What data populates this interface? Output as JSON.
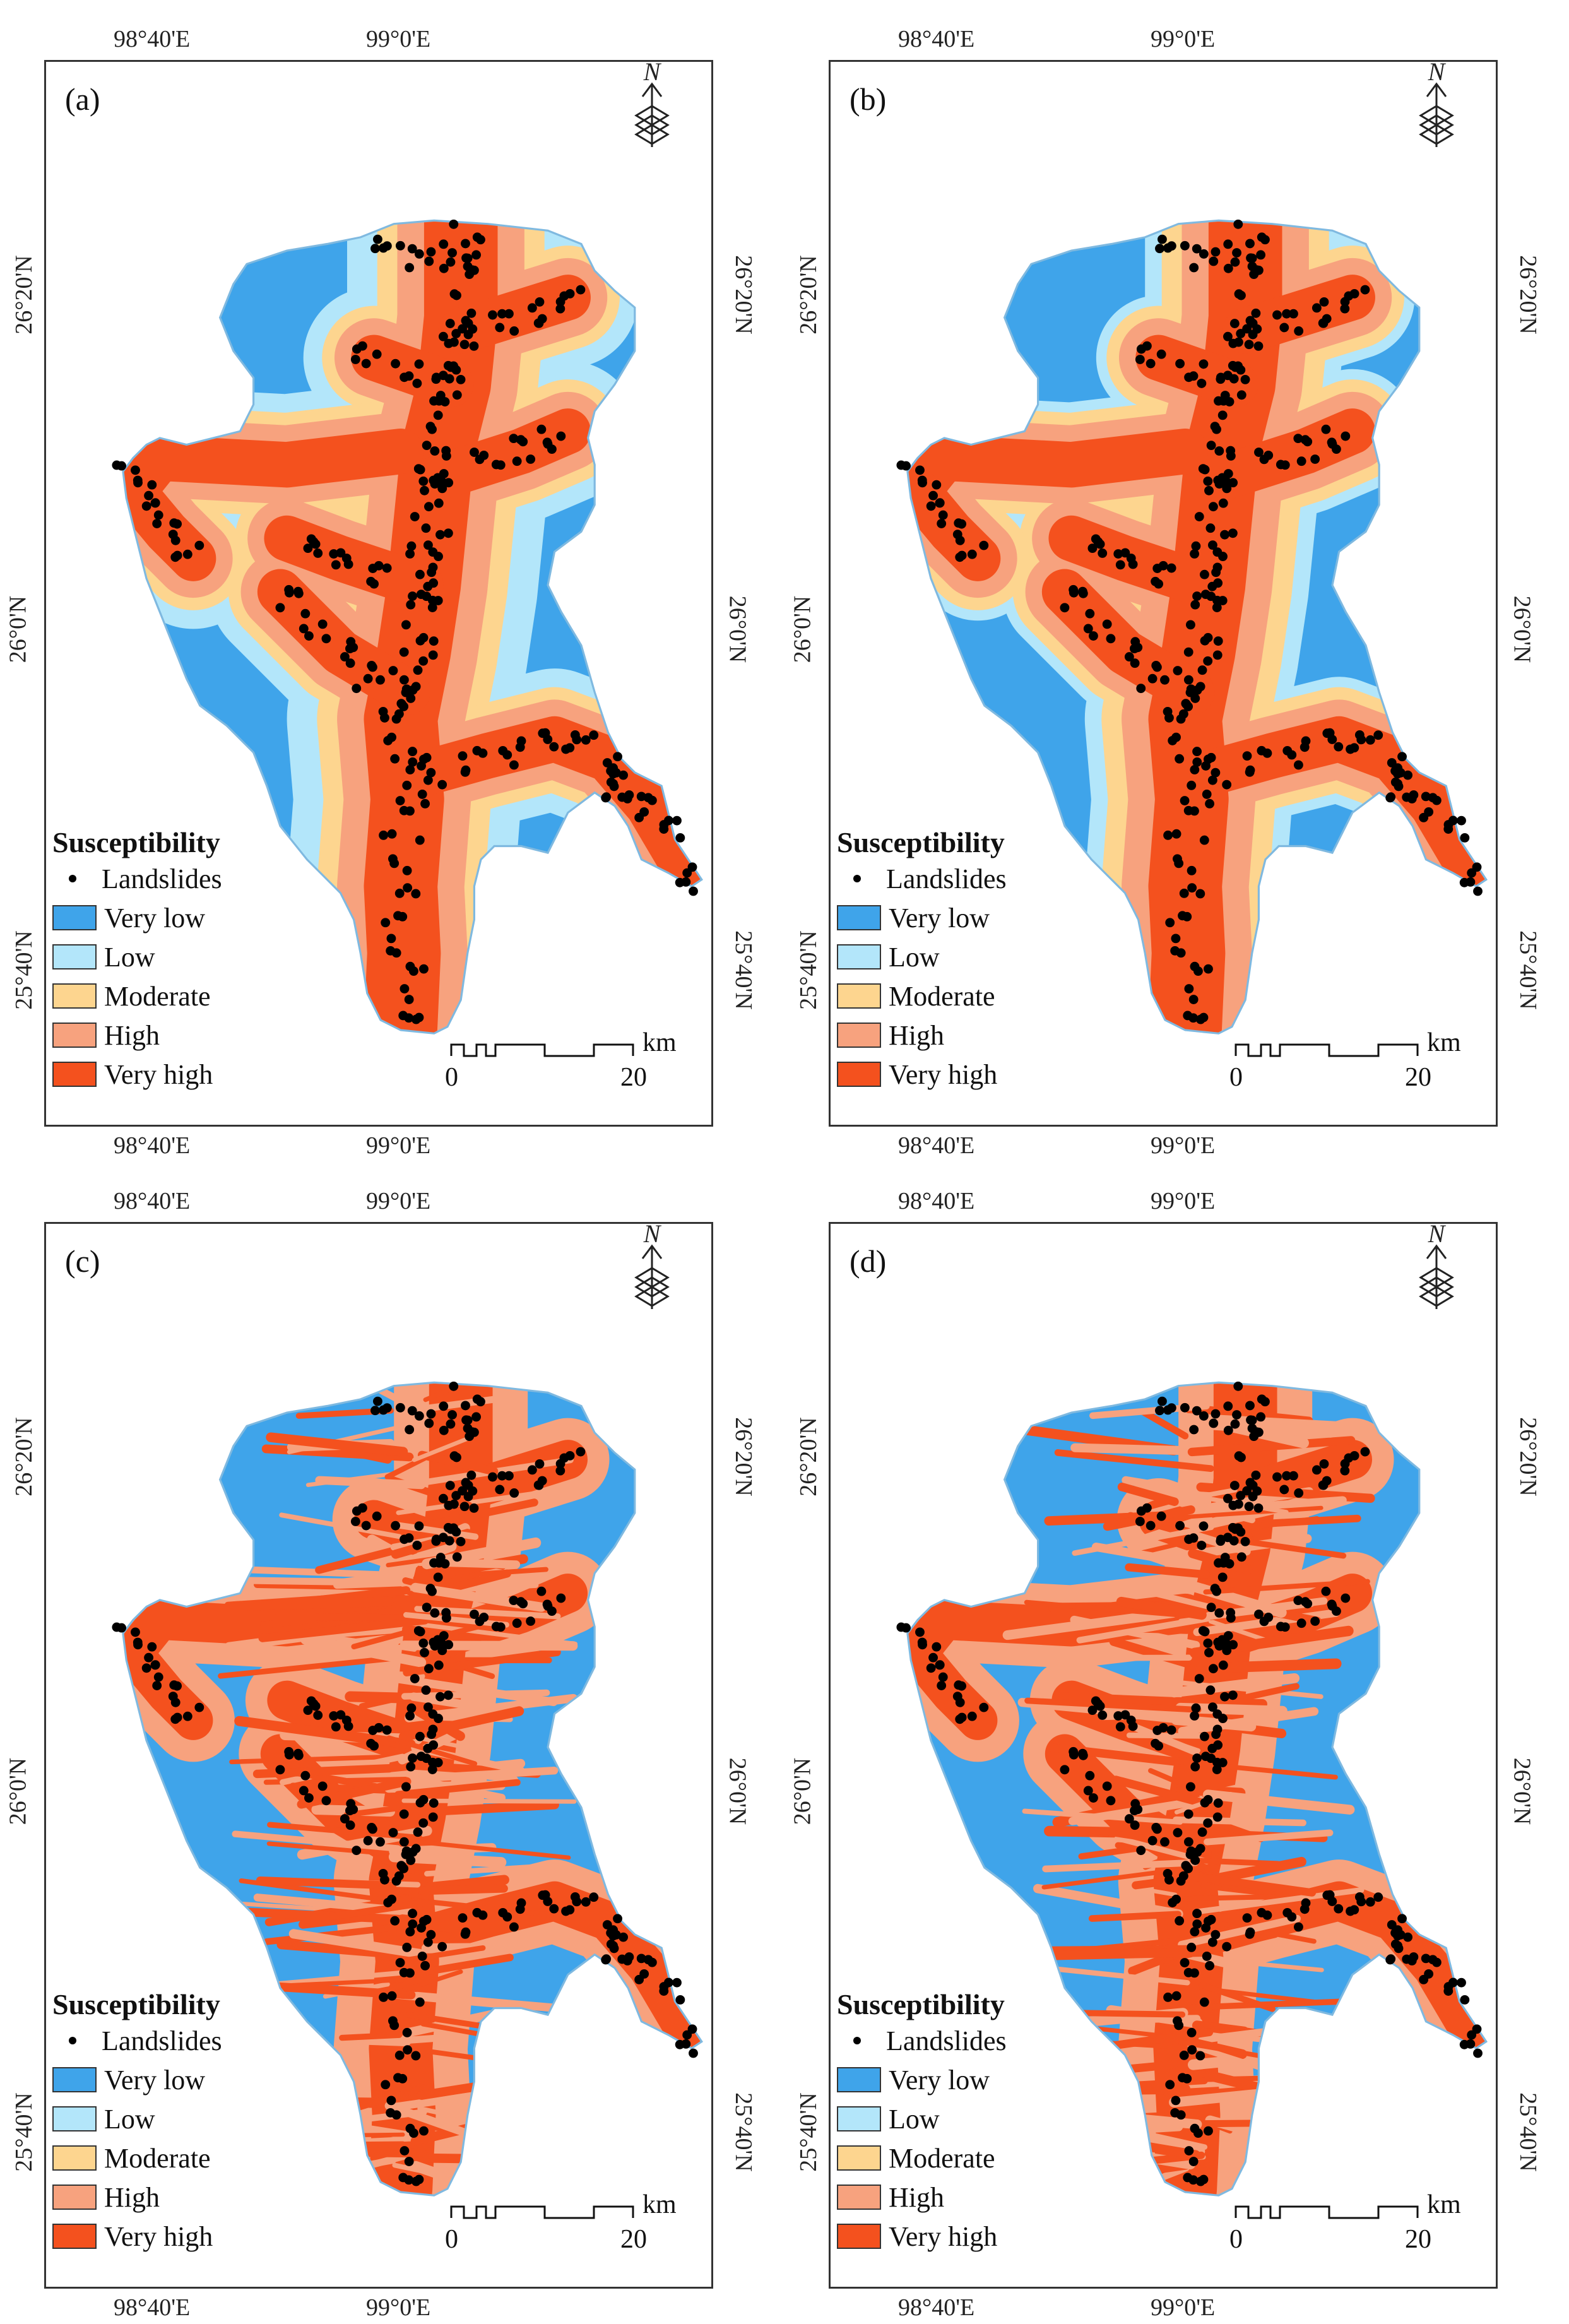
{
  "panels": [
    {
      "letter": "(a)",
      "variant": "a"
    },
    {
      "letter": "(b)",
      "variant": "b"
    },
    {
      "letter": "(c)",
      "variant": "c"
    },
    {
      "letter": "(d)",
      "variant": "d"
    }
  ],
  "axes": {
    "lon_ticks": [
      "98°40'E",
      "99°0'E"
    ],
    "lat_ticks": [
      "26°20'N",
      "26°0'N",
      "25°40'N"
    ]
  },
  "north_label": "N",
  "legend": {
    "title": "Susceptibility",
    "landslides_label": "Landslides",
    "classes": [
      {
        "label": "Very low",
        "color": "#3fa4ea"
      },
      {
        "label": "Low",
        "color": "#b3e6fa"
      },
      {
        "label": "Moderate",
        "color": "#fdd58f"
      },
      {
        "label": "High",
        "color": "#f7a27e"
      },
      {
        "label": "Very high",
        "color": "#f4511e"
      }
    ]
  },
  "scale_bar": {
    "start": "0",
    "end": "20",
    "unit": "km"
  }
}
